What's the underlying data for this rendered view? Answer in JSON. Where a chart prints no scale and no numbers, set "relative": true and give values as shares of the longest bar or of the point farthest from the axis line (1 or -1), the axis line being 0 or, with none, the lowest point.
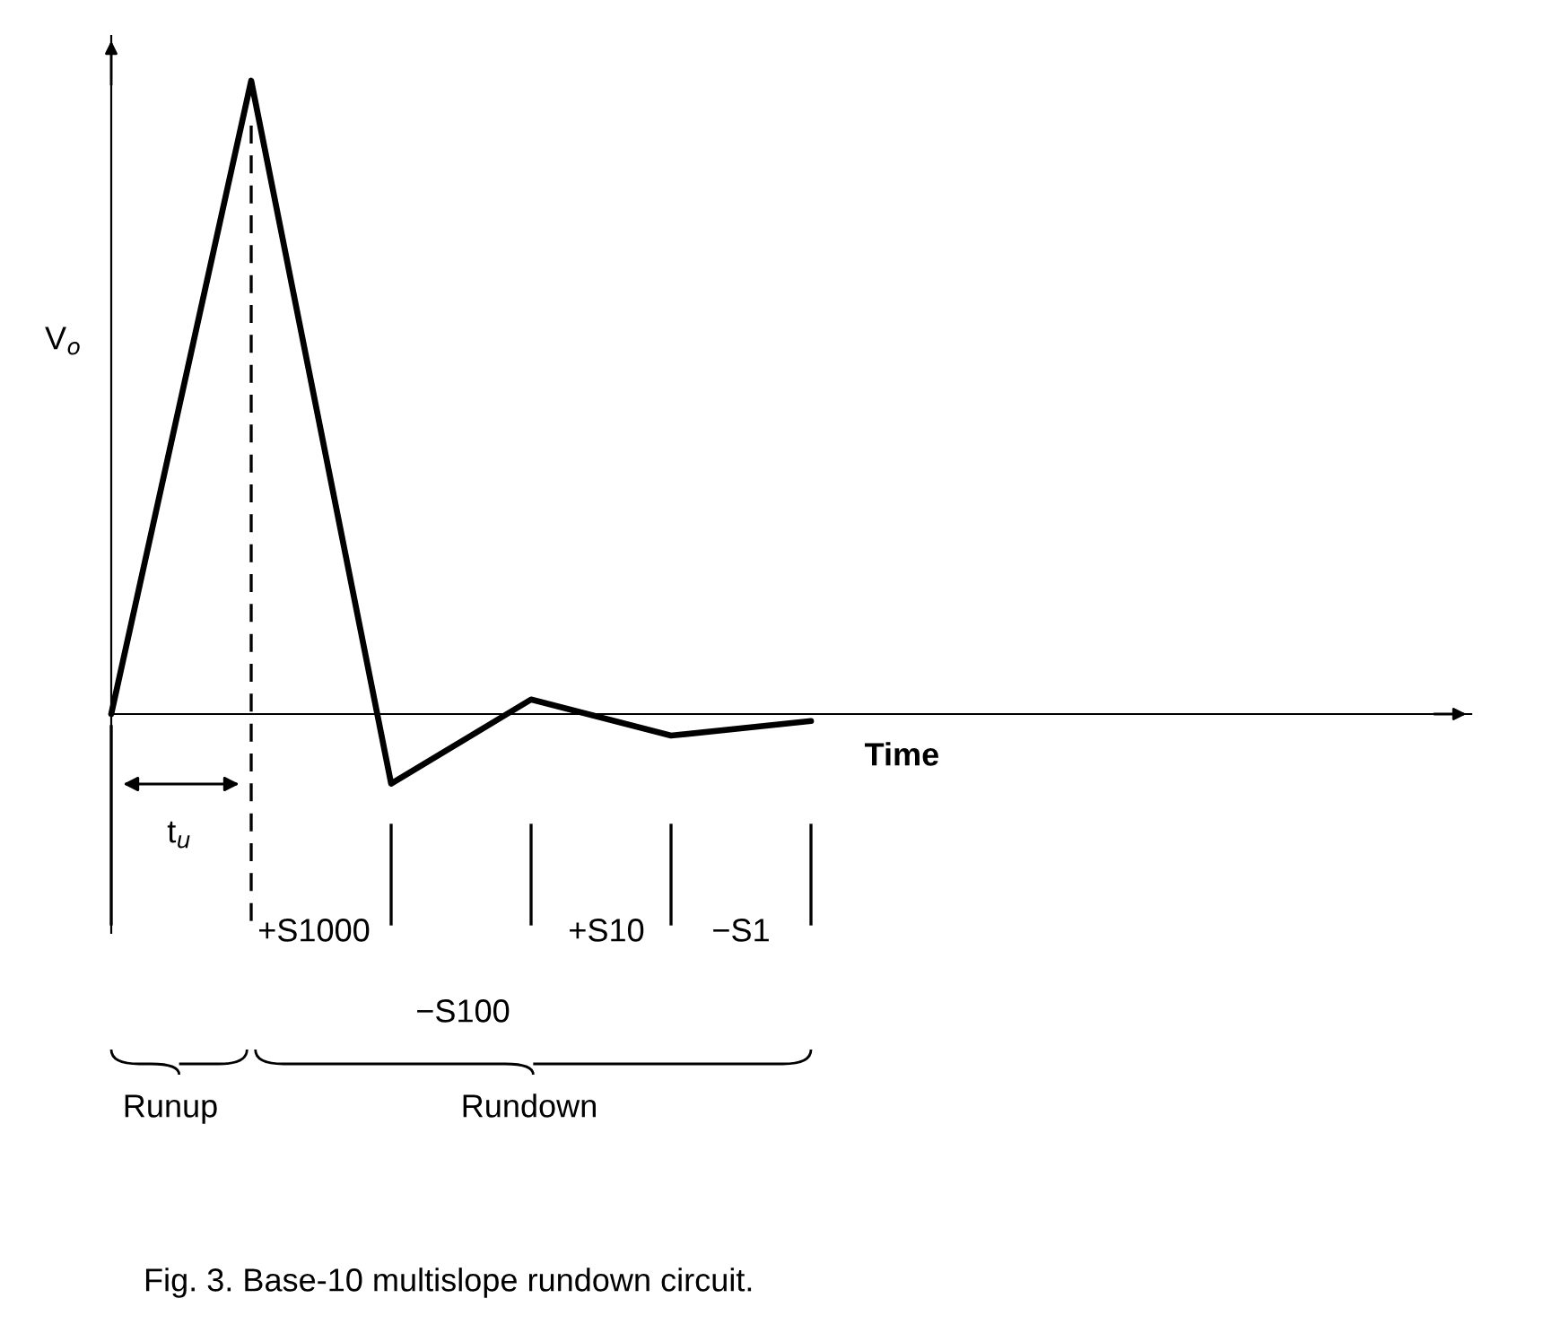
{
  "chart_data": {
    "type": "line",
    "relative": true,
    "xlabel": "Time",
    "ylabel": "V$_{o}$",
    "categories": [
      null,
      null,
      null,
      null,
      null,
      null,
      null,
      null,
      null,
      null
    ],
    "series": [
      {
        "color": "#000000",
        "values": [
          0,
          1,
          -0.11,
          0.023,
          -0.034,
          -0.011,
          null,
          null,
          null,
          null
        ]
      }
    ],
    "annotations": [
      "t$_{u}$",
      "+S1000",
      "−S100",
      "+S10",
      "−S1",
      "Runup",
      "Rundown",
      "Fig. 3. Base-10 multislope rundown circuit."
    ],
    "legend": false
  }
}
